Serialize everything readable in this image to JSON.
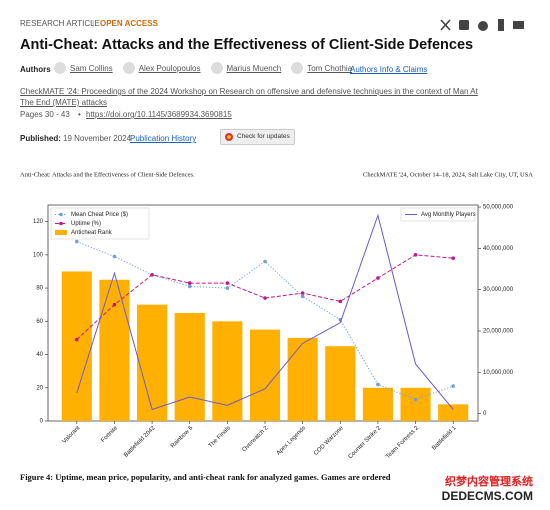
{
  "header": {
    "article_type": "RESEARCH ARTICLE",
    "separator": "|",
    "access": "OPEN ACCESS",
    "title": "Anti-Cheat: Attacks and the Effectiveness of Client-Side Defences",
    "authors_label": "Authors",
    "authors": [
      "Sam Collins",
      "Alex Poulopoulos",
      "Marius Muench",
      "Tom Chothia"
    ],
    "authors_info": "Authors Info & Claims",
    "proceedings": "CheckMATE '24: Proceedings of the 2024 Workshop on Research on offensive and defensive techniques in the context of Man At The End (MATE) attacks",
    "pages": "Pages 30 - 43",
    "bullet": "•",
    "doi": "https://doi.org/10.1145/3689934.3690815",
    "published_label": "Published:",
    "published_date": "19 November 2024",
    "publication_history": "Publication History",
    "check_updates": "Check for updates"
  },
  "paper": {
    "running_title": "Anti-Cheat: Attacks and the Effectiveness of Client-Side Defences.",
    "venue": "CheckMATE '24, October 14–18, 2024, Salt Lake City, UT, USA",
    "caption": "Figure 4: Uptime, mean price, popularity, and anti-cheat rank for analyzed games. Games are ordered"
  },
  "watermark": {
    "line1": "织梦内容管理系统",
    "line2": "DEDECMS.COM"
  },
  "chart_data": {
    "type": "combo",
    "categories": [
      "Valorant",
      "Fortnite",
      "Battlefield 2042",
      "Rainbow 6",
      "The Finals",
      "Overwatch 2",
      "Apex Legends",
      "COD Warzone",
      "Counter Strike 2",
      "Team Fortress 2",
      "Battlefield 1"
    ],
    "series": [
      {
        "name": "Mean Cheat Price ($)",
        "type": "line",
        "linestyle": "dotted",
        "color": "#6f9fd8",
        "values": [
          108,
          99,
          88,
          81,
          80,
          96,
          75,
          61,
          22,
          13,
          21
        ]
      },
      {
        "name": "Uptime (%)",
        "type": "line",
        "linestyle": "dashed",
        "color": "#c2188b",
        "values": [
          49,
          70,
          88,
          83,
          83,
          74,
          77,
          72,
          86,
          100,
          98
        ]
      },
      {
        "name": "Anticheat Rank",
        "type": "bar",
        "color": "#ffb000",
        "values": [
          90,
          85,
          70,
          65,
          60,
          55,
          50,
          45,
          20,
          20,
          10
        ]
      },
      {
        "name": "Avg Monthly Players",
        "type": "line",
        "linestyle": "solid",
        "color": "#6a5acd",
        "axis": "y2",
        "values": [
          5000000,
          34000000,
          1000000,
          4000000,
          2000000,
          6000000,
          17000000,
          22000000,
          48000000,
          12000000,
          1000000
        ]
      }
    ],
    "ylim": [
      0,
      130
    ],
    "yticks": [
      0,
      20,
      40,
      60,
      80,
      100,
      120
    ],
    "y2lim": [
      -1800000,
      50500000
    ],
    "y2ticks": [
      0,
      {
        "value": 10000000,
        "label": "10,000,000"
      },
      {
        "value": 20000000,
        "label": "20,000,000"
      },
      {
        "value": 30000000,
        "label": "30,000,000"
      },
      {
        "value": 40000000,
        "label": "40,000,000"
      },
      {
        "value": 50000000,
        "label": "50,000,000"
      }
    ],
    "grid": false,
    "legend": "upper left",
    "legend2": "upper right"
  }
}
